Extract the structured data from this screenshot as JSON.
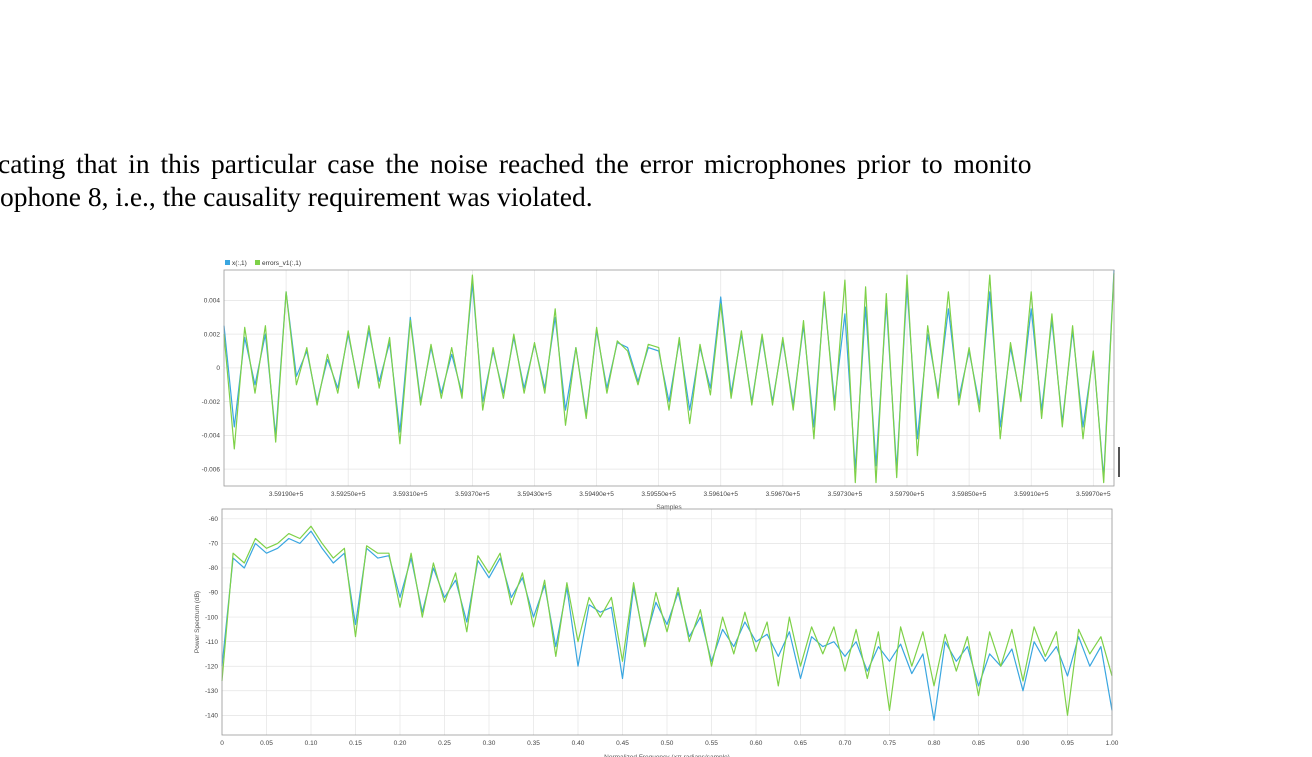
{
  "paragraph": {
    "line1": "cating that in this particular case the noise reached the error microphones prior to monito",
    "line2": "ophone 8, i.e., the causality requirement was violated."
  },
  "colors": {
    "series1": "#3aa6e0",
    "series2": "#7ed148"
  },
  "chart_data": [
    {
      "type": "line",
      "title": "",
      "xlabel": "Samples",
      "ylabel": "",
      "legend_position": "top-left",
      "grid": true,
      "xlim": [
        359130,
        359990
      ],
      "ylim": [
        -0.007,
        0.0058
      ],
      "x_ticks": [
        359190,
        359250,
        359310,
        359370,
        359430,
        359490,
        359550,
        359610,
        359670,
        359730,
        359790,
        359850,
        359910,
        359970
      ],
      "x_tick_labels": [
        "3.59190e+5",
        "3.59250e+5",
        "3.59310e+5",
        "3.59370e+5",
        "3.59430e+5",
        "3.59490e+5",
        "3.59550e+5",
        "3.59610e+5",
        "3.59670e+5",
        "3.59730e+5",
        "3.59790e+5",
        "3.59850e+5",
        "3.59910e+5",
        "3.59970e+5"
      ],
      "y_ticks": [
        0.004,
        0.002,
        0,
        -0.002,
        -0.004,
        -0.006
      ],
      "y_tick_labels": [
        "0.004",
        "0.002",
        "0",
        "-0.002",
        "-0.004",
        "-0.006"
      ],
      "x": [
        359130,
        359140,
        359150,
        359160,
        359170,
        359180,
        359190,
        359200,
        359210,
        359220,
        359230,
        359240,
        359250,
        359260,
        359270,
        359280,
        359290,
        359300,
        359310,
        359320,
        359330,
        359340,
        359350,
        359360,
        359370,
        359380,
        359390,
        359400,
        359410,
        359420,
        359430,
        359440,
        359450,
        359460,
        359470,
        359480,
        359490,
        359500,
        359510,
        359520,
        359530,
        359540,
        359550,
        359560,
        359570,
        359580,
        359590,
        359600,
        359610,
        359620,
        359630,
        359640,
        359650,
        359660,
        359670,
        359680,
        359690,
        359700,
        359710,
        359720,
        359730,
        359740,
        359750,
        359760,
        359770,
        359780,
        359790,
        359800,
        359810,
        359820,
        359830,
        359840,
        359850,
        359860,
        359870,
        359880,
        359890,
        359900,
        359910,
        359920,
        359930,
        359940,
        359950,
        359960,
        359970,
        359980,
        359990
      ],
      "series": [
        {
          "name": "x(:,1)",
          "color": "#3aa6e0",
          "values": [
            0.0025,
            -0.0035,
            0.0018,
            -0.001,
            0.002,
            -0.004,
            0.0045,
            -0.0005,
            0.001,
            -0.002,
            0.0005,
            -0.0012,
            0.002,
            -0.001,
            0.0022,
            -0.0008,
            0.0015,
            -0.0038,
            0.003,
            -0.002,
            0.0012,
            -0.0015,
            0.0008,
            -0.0015,
            0.005,
            -0.002,
            0.001,
            -0.0015,
            0.0018,
            -0.0012,
            0.0014,
            -0.0012,
            0.003,
            -0.0025,
            0.0012,
            -0.0028,
            0.0022,
            -0.0012,
            0.0015,
            0.0012,
            -0.0008,
            0.0012,
            0.001,
            -0.002,
            0.0016,
            -0.0025,
            0.0012,
            -0.0012,
            0.0042,
            -0.0015,
            0.002,
            -0.002,
            0.0018,
            -0.002,
            0.0016,
            -0.0022,
            0.0025,
            -0.0035,
            0.0042,
            -0.002,
            0.0032,
            -0.006,
            0.0036,
            -0.0058,
            0.0038,
            -0.006,
            0.0048,
            -0.0042,
            0.002,
            -0.0015,
            0.0035,
            -0.0018,
            0.001,
            -0.0022,
            0.0045,
            -0.0035,
            0.0012,
            -0.0018,
            0.0035,
            -0.0025,
            0.0028,
            -0.0032,
            0.0022,
            -0.0035,
            0.0008,
            -0.0065,
            0.0058
          ]
        },
        {
          "name": "errors_v1(:,1)",
          "color": "#7ed148",
          "values": [
            0.002,
            -0.0048,
            0.0024,
            -0.0015,
            0.0025,
            -0.0044,
            0.0045,
            -0.001,
            0.0012,
            -0.0022,
            0.0008,
            -0.0015,
            0.0022,
            -0.0012,
            0.0025,
            -0.0012,
            0.0018,
            -0.0045,
            0.0028,
            -0.0022,
            0.0014,
            -0.0018,
            0.0012,
            -0.0018,
            0.0055,
            -0.0025,
            0.0012,
            -0.0018,
            0.002,
            -0.0015,
            0.0015,
            -0.0015,
            0.0035,
            -0.0034,
            0.0012,
            -0.003,
            0.0024,
            -0.0015,
            0.0016,
            0.001,
            -0.001,
            0.0014,
            0.0012,
            -0.0025,
            0.0018,
            -0.0033,
            0.0014,
            -0.0016,
            0.0038,
            -0.0018,
            0.0022,
            -0.0022,
            0.002,
            -0.0022,
            0.0018,
            -0.0025,
            0.0028,
            -0.0042,
            0.0045,
            -0.0025,
            0.0052,
            -0.0068,
            0.0048,
            -0.0068,
            0.0044,
            -0.0065,
            0.0055,
            -0.0052,
            0.0025,
            -0.0018,
            0.0045,
            -0.0022,
            0.0012,
            -0.0026,
            0.0055,
            -0.0042,
            0.0015,
            -0.002,
            0.0045,
            -0.003,
            0.0032,
            -0.0035,
            0.0025,
            -0.0042,
            0.001,
            -0.0068,
            0.0056
          ]
        }
      ]
    },
    {
      "type": "line",
      "title": "",
      "xlabel": "Normalized Frequency (×π radians/sample)",
      "ylabel": "Power Spectrum (dB)",
      "grid": true,
      "xlim": [
        0,
        1.0
      ],
      "ylim": [
        -148,
        -56
      ],
      "x_ticks": [
        0,
        0.05,
        0.1,
        0.15,
        0.2,
        0.25,
        0.3,
        0.35,
        0.4,
        0.45,
        0.5,
        0.55,
        0.6,
        0.65,
        0.7,
        0.75,
        0.8,
        0.85,
        0.9,
        0.95,
        1.0
      ],
      "x_tick_labels": [
        "0",
        "0.05",
        "0.10",
        "0.15",
        "0.20",
        "0.25",
        "0.30",
        "0.35",
        "0.40",
        "0.45",
        "0.50",
        "0.55",
        "0.60",
        "0.65",
        "0.70",
        "0.75",
        "0.80",
        "0.85",
        "0.90",
        "0.95",
        "1.00"
      ],
      "y_ticks": [
        -60,
        -70,
        -80,
        -90,
        -100,
        -110,
        -120,
        -130,
        -140
      ],
      "y_tick_labels": [
        "-60",
        "-70",
        "-80",
        "-90",
        "-100",
        "-110",
        "-120",
        "-130",
        "-140"
      ],
      "x": [
        0,
        0.0125,
        0.025,
        0.0375,
        0.05,
        0.0625,
        0.075,
        0.0875,
        0.1,
        0.1125,
        0.125,
        0.1375,
        0.15,
        0.1625,
        0.175,
        0.1875,
        0.2,
        0.2125,
        0.225,
        0.2375,
        0.25,
        0.2625,
        0.275,
        0.2875,
        0.3,
        0.3125,
        0.325,
        0.3375,
        0.35,
        0.3625,
        0.375,
        0.3875,
        0.4,
        0.4125,
        0.425,
        0.4375,
        0.45,
        0.4625,
        0.475,
        0.4875,
        0.5,
        0.5125,
        0.525,
        0.5375,
        0.55,
        0.5625,
        0.575,
        0.5875,
        0.6,
        0.6125,
        0.625,
        0.6375,
        0.65,
        0.6625,
        0.675,
        0.6875,
        0.7,
        0.7125,
        0.725,
        0.7375,
        0.75,
        0.7625,
        0.775,
        0.7875,
        0.8,
        0.8125,
        0.825,
        0.8375,
        0.85,
        0.8625,
        0.875,
        0.8875,
        0.9,
        0.9125,
        0.925,
        0.9375,
        0.95,
        0.9625,
        0.975,
        0.9875,
        1.0
      ],
      "series": [
        {
          "name": "",
          "color": "#3aa6e0",
          "values": [
            -120,
            -76,
            -80,
            -70,
            -74,
            -72,
            -68,
            -70,
            -65,
            -72,
            -78,
            -74,
            -103,
            -72,
            -76,
            -75,
            -92,
            -76,
            -98,
            -80,
            -92,
            -85,
            -102,
            -77,
            -84,
            -76,
            -92,
            -84,
            -100,
            -87,
            -112,
            -88,
            -120,
            -95,
            -98,
            -96,
            -125,
            -88,
            -110,
            -94,
            -103,
            -90,
            -108,
            -100,
            -118,
            -105,
            -112,
            -102,
            -110,
            -107,
            -116,
            -106,
            -125,
            -108,
            -112,
            -110,
            -116,
            -110,
            -122,
            -112,
            -118,
            -111,
            -123,
            -115,
            -142,
            -110,
            -118,
            -112,
            -128,
            -115,
            -120,
            -113,
            -130,
            -110,
            -118,
            -112,
            -124,
            -108,
            -120,
            -112,
            -138
          ]
        },
        {
          "name": "",
          "color": "#7ed148",
          "values": [
            -126,
            -74,
            -78,
            -68,
            -72,
            -70,
            -66,
            -68,
            -63,
            -70,
            -76,
            -72,
            -108,
            -71,
            -74,
            -74,
            -96,
            -74,
            -100,
            -78,
            -94,
            -82,
            -106,
            -75,
            -82,
            -74,
            -95,
            -82,
            -104,
            -85,
            -116,
            -86,
            -110,
            -92,
            -100,
            -92,
            -118,
            -86,
            -112,
            -90,
            -106,
            -88,
            -110,
            -97,
            -120,
            -100,
            -115,
            -98,
            -114,
            -102,
            -128,
            -100,
            -120,
            -104,
            -115,
            -104,
            -122,
            -105,
            -125,
            -106,
            -138,
            -104,
            -120,
            -106,
            -128,
            -107,
            -122,
            -108,
            -132,
            -106,
            -120,
            -105,
            -126,
            -104,
            -116,
            -106,
            -140,
            -105,
            -115,
            -108,
            -124
          ]
        }
      ]
    }
  ]
}
